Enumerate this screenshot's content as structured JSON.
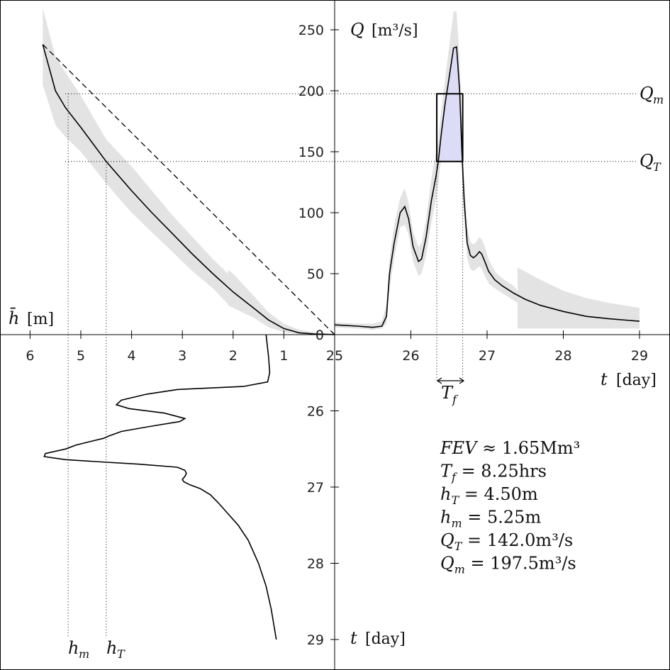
{
  "chart_data": [
    {
      "type": "line",
      "panel": "hydrograph (top-right)",
      "ylabel": "Q [m³/s]",
      "xlabel": "t [day]",
      "xlim": [
        25,
        29
      ],
      "ylim": [
        0,
        250
      ],
      "x_ticks": [
        25,
        26,
        27,
        28,
        29
      ],
      "y_ticks": [
        0,
        50,
        100,
        150,
        200,
        250
      ],
      "series": [
        {
          "x": [
            25.0,
            25.3,
            25.5,
            25.62,
            25.68,
            25.72,
            25.78,
            25.86,
            25.92,
            25.97,
            26.03,
            26.1,
            26.14,
            26.2,
            26.27,
            26.33,
            26.36,
            26.4,
            26.45,
            26.5,
            26.56,
            26.6,
            26.64,
            26.67,
            26.7,
            26.74,
            26.78,
            26.82,
            26.86,
            26.9,
            26.93,
            26.97,
            27.02,
            27.1,
            27.2,
            27.35,
            27.5,
            27.7,
            28.0,
            28.3,
            28.6,
            29.0
          ],
          "y": [
            8,
            7,
            6,
            7,
            15,
            50,
            75,
            100,
            105,
            95,
            72,
            60,
            62,
            80,
            110,
            130,
            142,
            165,
            190,
            210,
            235,
            236,
            200,
            150,
            110,
            75,
            65,
            63,
            65,
            68,
            66,
            60,
            52,
            45,
            40,
            34,
            29,
            24,
            19,
            15,
            13,
            11
          ]
        }
      ],
      "band_main": {
        "x": [
          25.0,
          25.3,
          25.5,
          25.62,
          25.68,
          25.72,
          25.78,
          25.86,
          25.92,
          25.97,
          26.03,
          26.1,
          26.14,
          26.2,
          26.27,
          26.33,
          26.36,
          26.4,
          26.45,
          26.5,
          26.56,
          26.6,
          26.64,
          26.67,
          26.7,
          26.74,
          26.78,
          26.82,
          26.86,
          26.9,
          26.93,
          26.97,
          27.02,
          27.1,
          27.2,
          27.35,
          27.4
        ],
        "upper": [
          10,
          9,
          9,
          11,
          25,
          62,
          90,
          112,
          120,
          108,
          84,
          72,
          75,
          95,
          128,
          150,
          160,
          185,
          210,
          235,
          265,
          265,
          225,
          170,
          125,
          88,
          76,
          74,
          76,
          80,
          78,
          72,
          62,
          52,
          46,
          40,
          36
        ],
        "lower": [
          6,
          5,
          4,
          5,
          9,
          38,
          62,
          88,
          90,
          82,
          60,
          48,
          50,
          65,
          92,
          112,
          124,
          145,
          170,
          185,
          205,
          207,
          178,
          130,
          95,
          62,
          54,
          52,
          54,
          56,
          54,
          48,
          42,
          38,
          34,
          28,
          26
        ]
      },
      "band_tail": {
        "x": [
          27.4,
          27.7,
          28.0,
          28.3,
          28.6,
          29.0
        ],
        "upper": [
          55,
          45,
          36,
          30,
          26,
          22
        ],
        "lower": [
          5,
          5,
          5,
          5,
          5,
          5
        ]
      },
      "threshold_lines": [
        {
          "label_main": "Q",
          "label_sub": "m",
          "value": 197.5
        },
        {
          "label_main": "Q",
          "label_sub": "T",
          "value": 142.0
        }
      ],
      "flood_box": {
        "t_start": 26.34,
        "t_end": 26.68,
        "q_low": 142.0,
        "q_high": 197.5
      }
    },
    {
      "type": "line",
      "panel": "rating curve (top-left)",
      "xlabel": "h̄ [m]",
      "xlim": [
        0,
        6
      ],
      "x_ticks": [
        1,
        2,
        3,
        4,
        5,
        6
      ],
      "series": [
        {
          "h": [
            0.0,
            0.4,
            0.7,
            1.0,
            1.3,
            1.6,
            2.0,
            2.4,
            2.8,
            3.2,
            3.6,
            4.0,
            4.5,
            5.0,
            5.3,
            5.5,
            5.75
          ],
          "q": [
            0,
            0.5,
            1.5,
            5,
            12,
            22,
            35,
            50,
            66,
            83,
            100,
            118,
            142,
            170,
            186,
            200,
            238
          ]
        }
      ],
      "reference_line": {
        "h": [
          0.0,
          5.75
        ],
        "q": [
          0,
          238
        ]
      },
      "band_main": {
        "h": [
          2.1,
          2.4,
          2.8,
          3.2,
          3.6,
          4.0,
          4.5,
          5.0,
          5.3,
          5.5,
          5.75
        ],
        "upper": [
          50,
          62,
          80,
          98,
          118,
          138,
          160,
          196,
          215,
          228,
          268
        ],
        "lower": [
          25,
          38,
          52,
          68,
          84,
          100,
          124,
          150,
          162,
          172,
          205
        ]
      },
      "band_low": {
        "h": [
          0.0,
          0.4,
          0.7,
          1.0,
          1.3,
          1.6,
          2.0,
          2.1
        ],
        "upper": [
          1,
          2,
          4,
          9,
          18,
          32,
          50,
          53
        ],
        "lower": [
          0,
          0,
          0.5,
          2,
          6,
          14,
          22,
          24
        ]
      }
    },
    {
      "type": "line",
      "panel": "stage hydrograph (bottom-left)",
      "ylabel": "t [day]",
      "ylim": [
        25,
        29
      ],
      "y_ticks": [
        26,
        27,
        28,
        29
      ],
      "series": [
        {
          "t": [
            25.0,
            25.3,
            25.5,
            25.62,
            25.68,
            25.72,
            25.78,
            25.86,
            25.92,
            25.97,
            26.03,
            26.1,
            26.14,
            26.2,
            26.27,
            26.33,
            26.36,
            26.4,
            26.45,
            26.5,
            26.56,
            26.6,
            26.64,
            26.67,
            26.7,
            26.74,
            26.78,
            26.82,
            26.86,
            26.9,
            26.93,
            26.97,
            27.02,
            27.1,
            27.2,
            27.35,
            27.5,
            27.7,
            28.0,
            28.3,
            28.6,
            29.0
          ],
          "h": [
            1.35,
            1.3,
            1.28,
            1.32,
            1.8,
            3.1,
            3.7,
            4.2,
            4.3,
            4.05,
            3.35,
            2.95,
            3.05,
            3.6,
            4.2,
            4.45,
            4.55,
            4.8,
            5.1,
            5.3,
            5.7,
            5.72,
            5.3,
            4.6,
            3.85,
            3.1,
            2.95,
            2.92,
            2.95,
            3.0,
            2.97,
            2.85,
            2.65,
            2.45,
            2.3,
            2.1,
            1.9,
            1.7,
            1.5,
            1.35,
            1.25,
            1.15
          ]
        }
      ],
      "guide_lines": [
        {
          "label_main": "h",
          "label_sub": "m",
          "value": 5.25
        },
        {
          "label_main": "h",
          "label_sub": "T",
          "value": 4.5
        }
      ]
    }
  ],
  "axes_labels": {
    "q_main": "Q",
    "q_units": "[m³/s]",
    "t_main": "t",
    "t_units": "[day]",
    "h_main": "h̄",
    "h_units": "[m]",
    "tf_main": "T",
    "tf_sub": "f",
    "origin_zero": "0"
  },
  "stats": [
    {
      "main": "FEV",
      "sub": "",
      "rest": " ≈ 1.65Mm³"
    },
    {
      "main": "T",
      "sub": "f",
      "rest": " = 8.25hrs"
    },
    {
      "main": "h",
      "sub": "T",
      "rest": " = 4.50m"
    },
    {
      "main": "h",
      "sub": "m",
      "rest": " = 5.25m"
    },
    {
      "main": "Q",
      "sub": "T",
      "rest": " = 142.0m³/s"
    },
    {
      "main": "Q",
      "sub": "m",
      "rest": " = 197.5m³/s"
    }
  ],
  "colors": {
    "band": "#e3e3e3",
    "flood_fill": "#dcdcf7",
    "curve": "#000000"
  }
}
